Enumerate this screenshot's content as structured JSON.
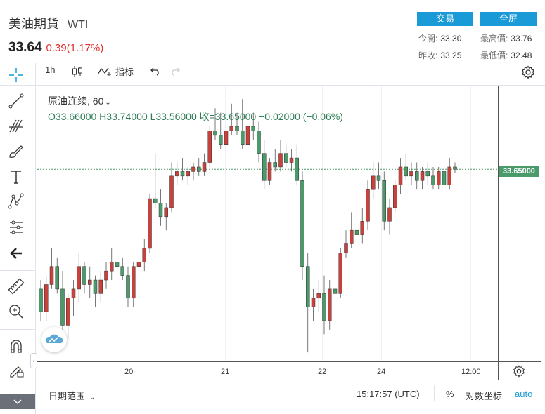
{
  "header": {
    "title": "美油期貨",
    "symbol": "WTI",
    "last_price": "33.64",
    "change": "0.39(1.17%)"
  },
  "buttons": {
    "trade": "交易",
    "fullscreen": "全屏"
  },
  "quote_stats": {
    "open_label": "今開:",
    "open": "33.30",
    "high_label": "最高價:",
    "high": "33.76",
    "prev_close_label": "昨收:",
    "prev_close": "33.25",
    "low_label": "最低價:",
    "low": "32.48"
  },
  "toolbar": {
    "interval": "1h",
    "indicators": "指标"
  },
  "legend": {
    "name": "原油连续, 60",
    "ohlc": "O33.66000   H33.74000   L33.56000   收=33.65000   −0.02000 (−0.06%)"
  },
  "bottom_bar": {
    "date_range": "日期范围",
    "time": "15:17:57 (UTC)",
    "percent": "%",
    "log_scale": "对数坐标",
    "auto": "auto"
  },
  "colors": {
    "up": "#c8413b",
    "down": "#4a9a6a",
    "accent": "#1a9ad6",
    "negative_change": "#e0302e"
  },
  "icons": [
    "crosshair-icon",
    "trend-line-icon",
    "fib-icon",
    "brush-icon",
    "text-icon",
    "pattern-icon",
    "measure-icon",
    "arrow-left-icon",
    "ruler-icon",
    "zoom-in-icon",
    "magnet-icon",
    "lock-pencil-icon",
    "lock-icon",
    "gear-icon",
    "candle-type-icon",
    "indicator-icon",
    "undo-icon",
    "redo-icon",
    "logo-icon"
  ],
  "chart_data": {
    "type": "candlestick",
    "x_ticks": [
      "20",
      "21",
      "22",
      "24",
      "12:00"
    ],
    "y_range": [
      29.4,
      35.5
    ],
    "current_price_label": "33.65000",
    "current_price": 33.65,
    "candles": [
      [
        31.0,
        31.2,
        30.3,
        30.5
      ],
      [
        30.5,
        31.3,
        30.3,
        31.1
      ],
      [
        31.1,
        31.9,
        31.0,
        31.5
      ],
      [
        31.5,
        31.7,
        30.9,
        31.0
      ],
      [
        31.0,
        31.4,
        30.0,
        30.2
      ],
      [
        30.2,
        30.9,
        29.9,
        30.8
      ],
      [
        30.8,
        31.2,
        30.4,
        31.0
      ],
      [
        31.0,
        31.8,
        30.7,
        31.5
      ],
      [
        31.5,
        31.6,
        30.9,
        31.1
      ],
      [
        31.1,
        31.5,
        30.8,
        31.2
      ],
      [
        31.2,
        31.3,
        30.6,
        30.9
      ],
      [
        30.9,
        31.4,
        30.7,
        31.2
      ],
      [
        31.2,
        31.6,
        31.0,
        31.4
      ],
      [
        31.4,
        31.9,
        31.2,
        31.6
      ],
      [
        31.6,
        31.8,
        31.3,
        31.5
      ],
      [
        31.5,
        31.7,
        31.2,
        31.3
      ],
      [
        31.3,
        31.5,
        30.6,
        30.8
      ],
      [
        30.8,
        31.6,
        30.6,
        31.5
      ],
      [
        31.5,
        31.8,
        31.3,
        31.6
      ],
      [
        31.6,
        32.1,
        31.4,
        31.9
      ],
      [
        31.9,
        33.1,
        31.8,
        33.0
      ],
      [
        33.0,
        34.0,
        32.8,
        32.9
      ],
      [
        32.9,
        33.2,
        32.4,
        32.6
      ],
      [
        32.6,
        32.9,
        32.3,
        32.8
      ],
      [
        32.8,
        33.8,
        32.7,
        33.5
      ],
      [
        33.5,
        33.8,
        33.3,
        33.6
      ],
      [
        33.6,
        33.9,
        33.4,
        33.5
      ],
      [
        33.5,
        33.7,
        33.3,
        33.6
      ],
      [
        33.6,
        33.8,
        33.4,
        33.7
      ],
      [
        33.7,
        33.9,
        33.5,
        33.6
      ],
      [
        33.6,
        34.0,
        33.5,
        33.8
      ],
      [
        33.8,
        34.6,
        33.7,
        34.5
      ],
      [
        34.5,
        35.0,
        34.3,
        34.4
      ],
      [
        34.4,
        34.9,
        34.1,
        34.2
      ],
      [
        34.2,
        34.6,
        34.0,
        34.5
      ],
      [
        34.5,
        35.1,
        34.4,
        34.6
      ],
      [
        34.6,
        34.9,
        34.4,
        34.5
      ],
      [
        34.5,
        35.2,
        34.1,
        34.2
      ],
      [
        34.2,
        34.8,
        34.0,
        34.6
      ],
      [
        34.6,
        34.9,
        34.3,
        34.5
      ],
      [
        34.5,
        34.7,
        33.8,
        34.0
      ],
      [
        34.0,
        34.3,
        33.2,
        33.4
      ],
      [
        33.4,
        33.9,
        33.3,
        33.8
      ],
      [
        33.8,
        34.1,
        33.6,
        33.7
      ],
      [
        33.7,
        34.3,
        33.6,
        34.0
      ],
      [
        34.0,
        34.2,
        33.7,
        33.8
      ],
      [
        33.8,
        34.1,
        33.6,
        33.9
      ],
      [
        33.9,
        34.2,
        33.3,
        33.4
      ],
      [
        33.4,
        33.6,
        31.2,
        31.5
      ],
      [
        31.5,
        31.8,
        29.6,
        30.6
      ],
      [
        30.6,
        31.0,
        30.3,
        30.8
      ],
      [
        30.8,
        31.2,
        30.5,
        30.9
      ],
      [
        30.9,
        31.3,
        30.0,
        30.3
      ],
      [
        30.3,
        31.2,
        30.1,
        31.0
      ],
      [
        31.0,
        31.5,
        30.8,
        30.9
      ],
      [
        30.9,
        31.9,
        30.8,
        31.8
      ],
      [
        31.8,
        32.3,
        31.7,
        32.0
      ],
      [
        32.0,
        32.7,
        31.9,
        32.3
      ],
      [
        32.3,
        32.6,
        32.0,
        32.2
      ],
      [
        32.2,
        32.8,
        32.0,
        32.5
      ],
      [
        32.5,
        33.4,
        32.3,
        33.2
      ],
      [
        33.2,
        33.8,
        33.0,
        33.5
      ],
      [
        33.5,
        33.8,
        33.2,
        33.4
      ],
      [
        33.4,
        33.6,
        32.3,
        32.5
      ],
      [
        32.5,
        33.0,
        32.2,
        32.8
      ],
      [
        32.8,
        33.4,
        32.7,
        33.3
      ],
      [
        33.3,
        33.9,
        33.1,
        33.7
      ],
      [
        33.7,
        34.0,
        33.4,
        33.5
      ],
      [
        33.5,
        33.8,
        33.3,
        33.6
      ],
      [
        33.6,
        33.8,
        33.2,
        33.4
      ],
      [
        33.4,
        33.7,
        33.2,
        33.6
      ],
      [
        33.6,
        33.8,
        33.3,
        33.5
      ],
      [
        33.5,
        33.7,
        33.2,
        33.3
      ],
      [
        33.3,
        33.7,
        33.2,
        33.6
      ],
      [
        33.6,
        33.8,
        33.2,
        33.3
      ],
      [
        33.3,
        33.9,
        33.2,
        33.7
      ],
      [
        33.7,
        33.8,
        33.56,
        33.65
      ]
    ]
  }
}
